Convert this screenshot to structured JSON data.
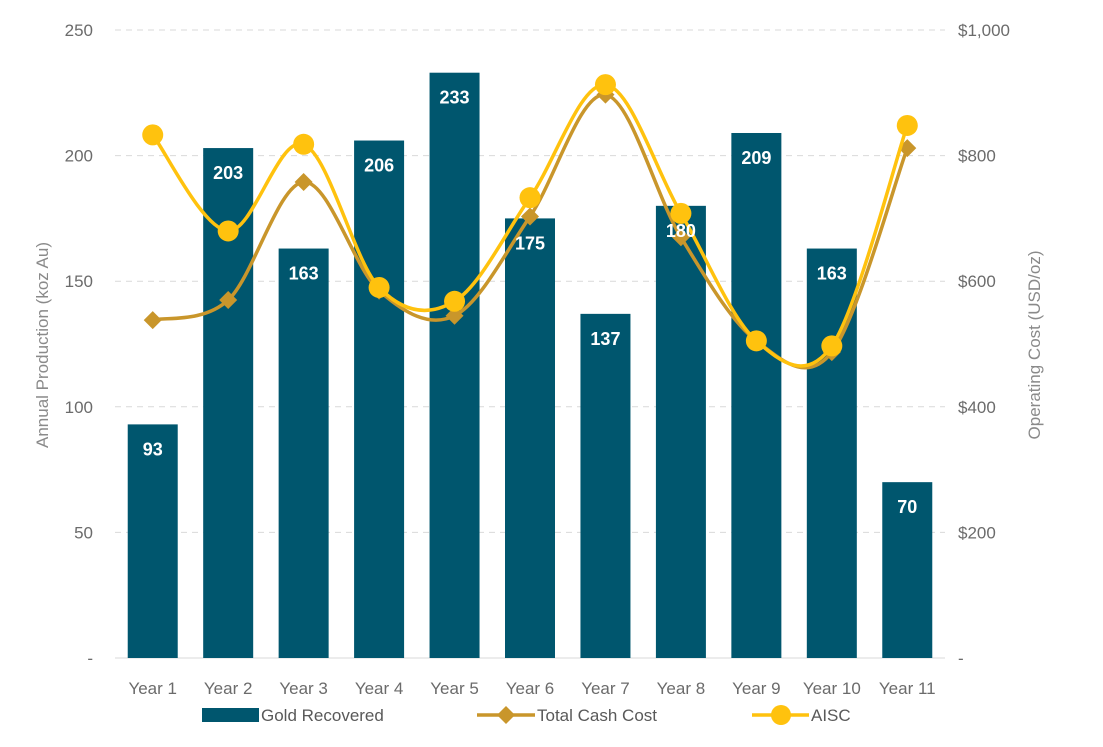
{
  "chart_data": {
    "type": "bar",
    "categories": [
      "Year 1",
      "Year 2",
      "Year 3",
      "Year 4",
      "Year 5",
      "Year 6",
      "Year 7",
      "Year 8",
      "Year 9",
      "Year 10",
      "Year 11"
    ],
    "series": [
      {
        "name": "Gold Recovered",
        "kind": "bar",
        "axis": "left",
        "color": "#00566e",
        "values": [
          93,
          203,
          163,
          206,
          233,
          175,
          137,
          180,
          209,
          163,
          70
        ]
      },
      {
        "name": "Total Cash Cost",
        "kind": "line",
        "axis": "right",
        "marker": "diamond",
        "color": "#c9962b",
        "values": [
          538,
          570,
          758,
          585,
          545,
          703,
          897,
          670,
          505,
          487,
          812
        ]
      },
      {
        "name": "AISC",
        "kind": "line",
        "axis": "right",
        "marker": "circle",
        "color": "#ffc20e",
        "values": [
          833,
          680,
          818,
          590,
          568,
          733,
          913,
          708,
          505,
          497,
          848
        ]
      }
    ],
    "ylabel": "Annual Production (koz Au)",
    "y2label": "Operating Cost (USD/oz)",
    "ylim": [
      0,
      250
    ],
    "y2lim": [
      0,
      1000
    ],
    "yticks": [
      "-",
      "50",
      "100",
      "150",
      "200",
      "250"
    ],
    "y2ticks": [
      "-",
      "$200",
      "$400",
      "$600",
      "$800",
      "$1,000"
    ],
    "grid": true,
    "legend_position": "bottom"
  }
}
